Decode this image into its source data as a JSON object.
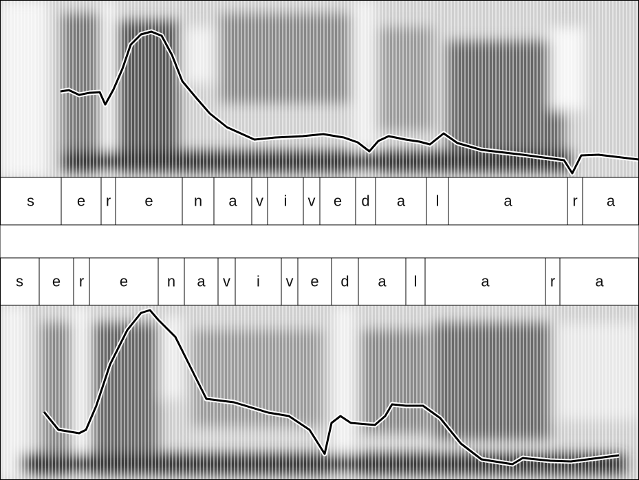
{
  "tier1": {
    "labels": [
      "s",
      "e",
      "r",
      "e",
      "n",
      "a",
      "v",
      "i",
      "v",
      "e",
      "d",
      "a",
      "l",
      "a",
      "r",
      "a"
    ]
  },
  "tier2": {
    "labels": [
      "s",
      "e",
      "r",
      "e",
      "n",
      "a",
      "v",
      "i",
      "v",
      "e",
      "d",
      "a",
      "l",
      "a",
      "r",
      "a"
    ]
  }
}
